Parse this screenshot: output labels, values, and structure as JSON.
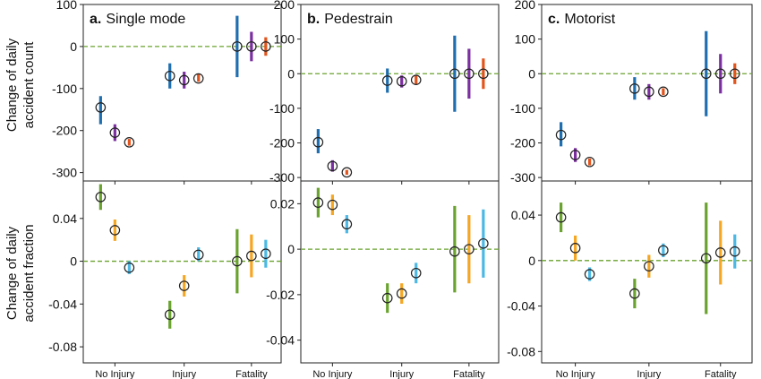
{
  "ylabels": {
    "count_line1": "Change of daily",
    "count_line2": "accident count",
    "fraction_line1": "Change of daily",
    "fraction_line2": "accident fraction"
  },
  "panel_titles": [
    {
      "letter": "a.",
      "name": "Single mode"
    },
    {
      "letter": "b.",
      "name": "Pedestrain"
    },
    {
      "letter": "c.",
      "name": "Motorist"
    }
  ],
  "categories": [
    "No Injury",
    "Injury",
    "Fatality"
  ],
  "colors": {
    "count": [
      "#1f6fb0",
      "#7b2fa0",
      "#e3541c"
    ],
    "fraction": [
      "#6aa32f",
      "#f5a623",
      "#4cb8e6"
    ],
    "zero_line": "#6aa32f",
    "marker_edge": "#222222"
  },
  "chart_data": [
    {
      "type": "scatter",
      "panel": "a",
      "metric": "count",
      "categories": [
        "No Injury",
        "Injury",
        "Fatality"
      ],
      "ylim": [
        -320,
        100
      ],
      "yticks": [
        100,
        0,
        -100,
        -200,
        -300
      ],
      "ytick_labels": [
        "100",
        "0",
        "-100",
        "-200",
        "-300"
      ],
      "series": [
        {
          "values": [
            -145,
            -70,
            0
          ],
          "lower": [
            -185,
            -100,
            -73
          ],
          "upper": [
            -118,
            -40,
            73
          ]
        },
        {
          "values": [
            -205,
            -80,
            0
          ],
          "lower": [
            -225,
            -100,
            -35
          ],
          "upper": [
            -185,
            -60,
            35
          ]
        },
        {
          "values": [
            -228,
            -76,
            0
          ],
          "lower": [
            -236,
            -84,
            -22
          ],
          "upper": [
            -220,
            -66,
            22
          ]
        }
      ]
    },
    {
      "type": "scatter",
      "panel": "b",
      "metric": "count",
      "categories": [
        "No Injury",
        "Injury",
        "Fatality"
      ],
      "ylim": [
        -310,
        200
      ],
      "yticks": [
        200,
        100,
        0,
        -100,
        -200,
        -300
      ],
      "ytick_labels": [
        "200",
        "100",
        "0",
        "-100",
        "-200",
        "-300"
      ],
      "series": [
        {
          "values": [
            -198,
            -20,
            0
          ],
          "lower": [
            -230,
            -55,
            -110
          ],
          "upper": [
            -160,
            15,
            110
          ]
        },
        {
          "values": [
            -267,
            -22,
            0
          ],
          "lower": [
            -283,
            -40,
            -72
          ],
          "upper": [
            -250,
            -5,
            72
          ]
        },
        {
          "values": [
            -285,
            -18,
            0
          ],
          "lower": [
            -292,
            -30,
            -44
          ],
          "upper": [
            -278,
            -6,
            44
          ]
        }
      ]
    },
    {
      "type": "scatter",
      "panel": "c",
      "metric": "count",
      "categories": [
        "No Injury",
        "Injury",
        "Fatality"
      ],
      "ylim": [
        -310,
        200
      ],
      "yticks": [
        200,
        100,
        0,
        -100,
        -200,
        -300
      ],
      "ytick_labels": [
        "200",
        "100",
        "0",
        "-100",
        "-200",
        "-300"
      ],
      "series": [
        {
          "values": [
            -177,
            -43,
            0
          ],
          "lower": [
            -210,
            -75,
            -123
          ],
          "upper": [
            -140,
            -10,
            123
          ]
        },
        {
          "values": [
            -235,
            -52,
            0
          ],
          "lower": [
            -255,
            -75,
            -57
          ],
          "upper": [
            -215,
            -30,
            57
          ]
        },
        {
          "values": [
            -255,
            -52,
            0
          ],
          "lower": [
            -265,
            -62,
            -30
          ],
          "upper": [
            -245,
            -42,
            30
          ]
        }
      ]
    },
    {
      "type": "scatter",
      "panel": "a",
      "metric": "fraction",
      "categories": [
        "No Injury",
        "Injury",
        "Fatality"
      ],
      "ylim": [
        -0.095,
        0.075
      ],
      "yticks": [
        0.04,
        0,
        -0.04,
        -0.08
      ],
      "ytick_labels": [
        "0.04",
        "0",
        "-0.04",
        "-0.08"
      ],
      "series": [
        {
          "values": [
            0.06,
            -0.05,
            0
          ],
          "lower": [
            0.048,
            -0.063,
            -0.03
          ],
          "upper": [
            0.072,
            -0.037,
            0.03
          ]
        },
        {
          "values": [
            0.029,
            -0.023,
            0.005
          ],
          "lower": [
            0.019,
            -0.033,
            -0.015
          ],
          "upper": [
            0.039,
            -0.013,
            0.025
          ]
        },
        {
          "values": [
            -0.006,
            0.006,
            0.007
          ],
          "lower": [
            -0.012,
            0.0,
            -0.006
          ],
          "upper": [
            0.0,
            0.013,
            0.02
          ]
        }
      ]
    },
    {
      "type": "scatter",
      "panel": "b",
      "metric": "fraction",
      "categories": [
        "No Injury",
        "Injury",
        "Fatality"
      ],
      "ylim": [
        -0.05,
        0.03
      ],
      "yticks": [
        0.02,
        0,
        -0.02,
        -0.04
      ],
      "ytick_labels": [
        "0.02",
        "0",
        "-0.02",
        "-0.04"
      ],
      "series": [
        {
          "values": [
            0.0205,
            -0.0215,
            -0.001
          ],
          "lower": [
            0.014,
            -0.028,
            -0.019
          ],
          "upper": [
            0.027,
            -0.015,
            0.019
          ]
        },
        {
          "values": [
            0.0195,
            -0.0195,
            0.0
          ],
          "lower": [
            0.015,
            -0.024,
            -0.015
          ],
          "upper": [
            0.024,
            -0.015,
            0.015
          ]
        },
        {
          "values": [
            0.011,
            -0.0105,
            0.0025
          ],
          "lower": [
            0.007,
            -0.015,
            -0.0125
          ],
          "upper": [
            0.015,
            -0.006,
            0.0175
          ]
        }
      ]
    },
    {
      "type": "scatter",
      "panel": "c",
      "metric": "fraction",
      "categories": [
        "No Injury",
        "Injury",
        "Fatality"
      ],
      "ylim": [
        -0.09,
        0.07
      ],
      "yticks": [
        0.04,
        0,
        -0.04,
        -0.08
      ],
      "ytick_labels": [
        "0.04",
        "0",
        "-0.04",
        "-0.08"
      ],
      "series": [
        {
          "values": [
            0.038,
            -0.029,
            0.002
          ],
          "lower": [
            0.025,
            -0.042,
            -0.047
          ],
          "upper": [
            0.051,
            -0.016,
            0.051
          ]
        },
        {
          "values": [
            0.011,
            -0.005,
            0.007
          ],
          "lower": [
            0.0,
            -0.015,
            -0.021
          ],
          "upper": [
            0.022,
            0.005,
            0.035
          ]
        },
        {
          "values": [
            -0.012,
            0.009,
            0.008
          ],
          "lower": [
            -0.018,
            0.003,
            -0.007
          ],
          "upper": [
            -0.006,
            0.015,
            0.023
          ]
        }
      ]
    }
  ]
}
